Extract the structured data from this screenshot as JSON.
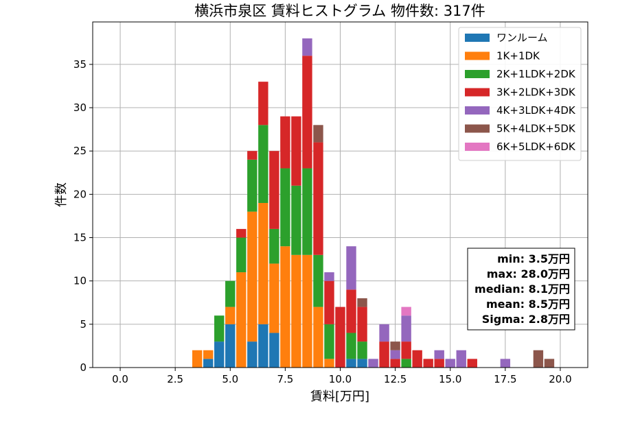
{
  "chart_data": {
    "type": "bar",
    "stacked": true,
    "title": "横浜市泉区 賃料ヒストグラム 物件数: 317件",
    "xlabel": "賃料[万円]",
    "ylabel": "件数",
    "xlim": [
      -1.25,
      21.25
    ],
    "ylim": [
      0,
      39.9
    ],
    "x_ticks": [
      "0.0",
      "2.5",
      "5.0",
      "7.5",
      "10.0",
      "12.5",
      "15.0",
      "17.5",
      "20.0"
    ],
    "y_ticks": [
      "0",
      "5",
      "10",
      "15",
      "20",
      "25",
      "30",
      "35"
    ],
    "grid": true,
    "legend_position": "top-right",
    "bin_width": 0.5,
    "x": [
      3.5,
      4.0,
      4.5,
      5.0,
      5.5,
      6.0,
      6.5,
      7.0,
      7.5,
      8.0,
      8.5,
      9.0,
      9.5,
      10.0,
      10.5,
      11.0,
      11.5,
      12.0,
      12.5,
      13.0,
      13.5,
      14.0,
      14.5,
      15.0,
      15.5,
      16.0,
      17.5,
      19.0,
      19.5
    ],
    "series": [
      {
        "name": "ワンルーム",
        "color": "#1f77b4",
        "values": [
          0,
          1,
          3,
          5,
          0,
          3,
          5,
          4,
          0,
          0,
          0,
          0,
          0,
          0,
          1,
          1,
          0,
          0,
          0,
          0,
          0,
          0,
          0,
          0,
          0,
          0,
          0,
          0,
          0
        ]
      },
      {
        "name": "1K+1DK",
        "color": "#ff7f0e",
        "values": [
          2,
          1,
          0,
          2,
          11,
          15,
          14,
          8,
          14,
          13,
          13,
          7,
          1,
          0,
          0,
          0,
          0,
          0,
          0,
          0,
          0,
          0,
          0,
          0,
          0,
          0,
          0,
          0,
          0
        ]
      },
      {
        "name": "2K+1LDK+2DK",
        "color": "#2ca02c",
        "values": [
          0,
          0,
          3,
          3,
          4,
          6,
          9,
          4,
          9,
          8,
          10,
          6,
          4,
          0,
          3,
          2,
          0,
          0,
          0,
          1,
          0,
          0,
          0,
          0,
          0,
          0,
          0,
          0,
          0
        ]
      },
      {
        "name": "3K+2LDK+3DK",
        "color": "#d62728",
        "values": [
          0,
          0,
          0,
          0,
          1,
          1,
          5,
          9,
          6,
          8,
          13,
          13,
          5,
          7,
          5,
          4,
          0,
          3,
          1,
          2,
          2,
          1,
          1,
          0,
          0,
          1,
          0,
          0,
          0
        ]
      },
      {
        "name": "4K+3LDK+4DK",
        "color": "#9467bd",
        "values": [
          0,
          0,
          0,
          0,
          0,
          0,
          0,
          0,
          0,
          0,
          2,
          0,
          1,
          0,
          5,
          0,
          1,
          2,
          1,
          3,
          0,
          0,
          1,
          1,
          2,
          0,
          1,
          0,
          0
        ]
      },
      {
        "name": "5K+4LDK+5DK",
        "color": "#8c564b",
        "values": [
          0,
          0,
          0,
          0,
          0,
          0,
          0,
          0,
          0,
          0,
          0,
          2,
          0,
          0,
          0,
          1,
          0,
          0,
          1,
          0,
          0,
          0,
          0,
          0,
          0,
          0,
          0,
          2,
          1
        ]
      },
      {
        "name": "6K+5LDK+6DK",
        "color": "#e377c2",
        "values": [
          0,
          0,
          0,
          0,
          0,
          0,
          0,
          0,
          0,
          0,
          0,
          0,
          0,
          0,
          0,
          0,
          0,
          0,
          0,
          1,
          0,
          0,
          0,
          0,
          0,
          0,
          0,
          0,
          0
        ]
      }
    ],
    "stats": [
      "min: 3.5万円",
      "max: 28.0万円",
      "median: 8.1万円",
      "mean: 8.5万円",
      "Sigma: 2.8万円"
    ]
  }
}
